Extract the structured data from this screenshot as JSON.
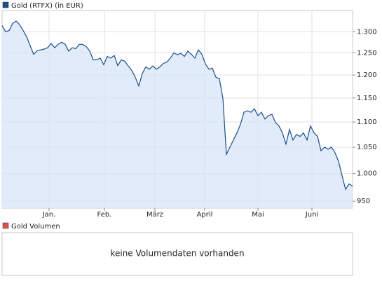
{
  "chart_data": {
    "type": "area",
    "series": [
      {
        "name": "Gold (RTFX) (in EUR)",
        "color": "#1b4f8c",
        "fill": "#e1ebf9",
        "values": [
          1315,
          1300,
          1303,
          1320,
          1326,
          1317,
          1303,
          1288,
          1267,
          1247,
          1255,
          1257,
          1259,
          1262,
          1272,
          1262,
          1270,
          1275,
          1270,
          1254,
          1262,
          1260,
          1270,
          1270,
          1265,
          1254,
          1234,
          1234,
          1238,
          1223,
          1242,
          1238,
          1244,
          1221,
          1234,
          1231,
          1220,
          1210,
          1195,
          1176,
          1203,
          1218,
          1213,
          1220,
          1213,
          1218,
          1226,
          1229,
          1238,
          1250,
          1246,
          1249,
          1242,
          1254,
          1247,
          1238,
          1257,
          1247,
          1225,
          1213,
          1215,
          1195,
          1192,
          1149,
          1036,
          1050,
          1064,
          1078,
          1095,
          1120,
          1123,
          1120,
          1127,
          1113,
          1120,
          1106,
          1113,
          1116,
          1099,
          1092,
          1078,
          1056,
          1085,
          1064,
          1075,
          1071,
          1078,
          1064,
          1092,
          1078,
          1071,
          1043,
          1050,
          1046,
          1050,
          1039,
          1023,
          996,
          971,
          981,
          977
        ]
      }
    ],
    "xlim": [
      0,
      100
    ],
    "xticks": [
      {
        "value": 13.4,
        "label": "Jan."
      },
      {
        "value": 29.2,
        "label": "Feb."
      },
      {
        "value": 43.6,
        "label": "März"
      },
      {
        "value": 57.8,
        "label": "April"
      },
      {
        "value": 73,
        "label": "Mai"
      },
      {
        "value": 88.4,
        "label": "Juni"
      }
    ],
    "ylim": [
      938,
      1352
    ],
    "yticks": [
      950,
      {
        "value": 1000,
        "label": "1.000"
      },
      {
        "value": 1050,
        "label": "1.050"
      },
      {
        "value": 1100,
        "label": "1.100"
      },
      {
        "value": 1150,
        "label": "1.150"
      },
      {
        "value": 1200,
        "label": "1.200"
      },
      {
        "value": 1250,
        "label": "1.250"
      },
      {
        "value": 1300,
        "label": "1.300"
      }
    ],
    "log": true,
    "grid": true
  },
  "volume_panel": {
    "legend": "Gold Volumen",
    "color": "#d9534f",
    "message": "keine Volumendaten vorhanden"
  }
}
